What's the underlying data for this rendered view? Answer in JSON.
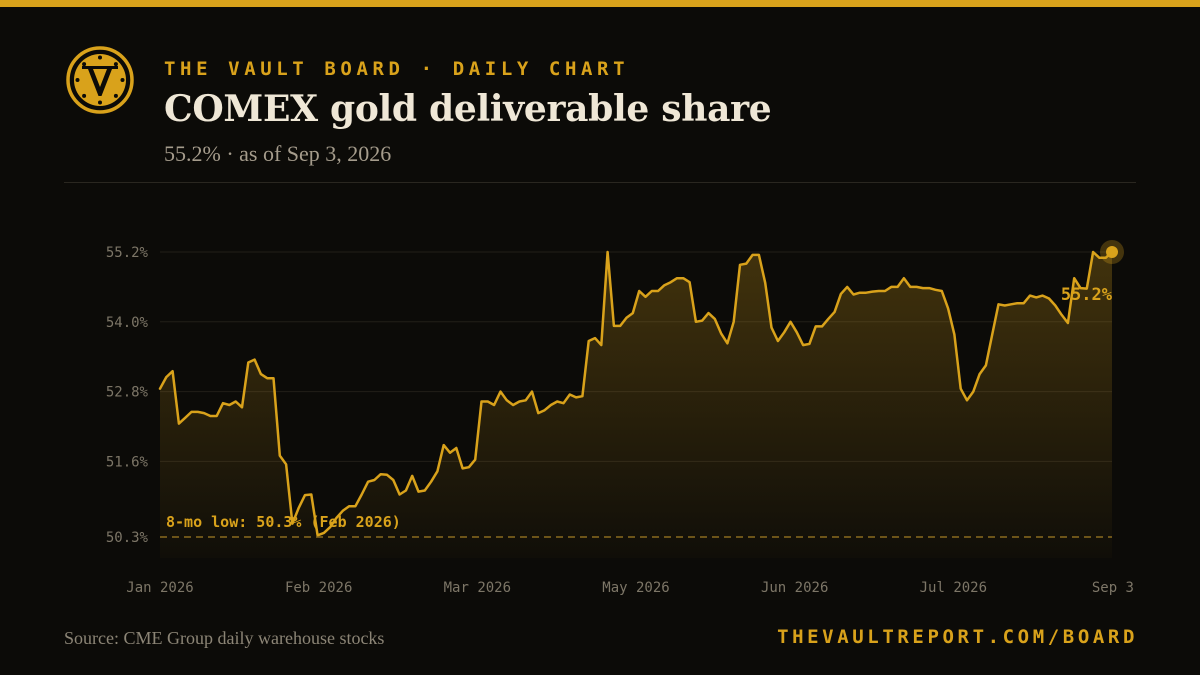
{
  "header": {
    "kicker": "THE VAULT BOARD · DAILY CHART",
    "title": "COMEX gold deliverable share",
    "subtitle": "55.2% · as of Sep 3, 2026",
    "logo_icon": "vault-v-dial-icon"
  },
  "footer": {
    "source": "Source: CME Group daily warehouse stocks",
    "url": "THEVAULTREPORT.COM/BOARD"
  },
  "colors": {
    "background": "#0c0b08",
    "accent": "#d9a21b",
    "title": "#efe7d6"
  },
  "chart_data": {
    "type": "area",
    "title": "COMEX gold deliverable share",
    "yticks": [
      "55.2%",
      "54.0%",
      "52.8%",
      "51.6%",
      "50.3%"
    ],
    "ytick_values": [
      55.2,
      54.0,
      52.8,
      51.6,
      50.3
    ],
    "ylim": [
      50.0,
      55.3
    ],
    "xticks": [
      "Jan 2026",
      "Feb 2026",
      "Mar 2026",
      "May 2026",
      "Jun 2026",
      "Jul 2026",
      "Sep 3"
    ],
    "grid": true,
    "series": [
      {
        "values": [
          52.85,
          53.05,
          53.15,
          52.25,
          52.35,
          52.45,
          52.45,
          52.43,
          52.38,
          52.38,
          52.6,
          52.57,
          52.63,
          52.53,
          53.3,
          53.35,
          53.1,
          53.03,
          53.03,
          51.7,
          51.55,
          50.53,
          50.8,
          51.02,
          51.03,
          50.33,
          50.37,
          50.47,
          50.63,
          50.75,
          50.83,
          50.83,
          51.03,
          51.25,
          51.28,
          51.38,
          51.37,
          51.28,
          51.03,
          51.1,
          51.35,
          51.08,
          51.1,
          51.25,
          51.43,
          51.88,
          51.75,
          51.83,
          51.48,
          51.5,
          51.63,
          52.63,
          52.63,
          52.57,
          52.8,
          52.65,
          52.57,
          52.63,
          52.65,
          52.8,
          52.43,
          52.48,
          52.57,
          52.63,
          52.6,
          52.75,
          52.7,
          52.72,
          53.67,
          53.72,
          53.6,
          55.2,
          53.93,
          53.93,
          54.07,
          54.15,
          54.53,
          54.43,
          54.53,
          54.53,
          54.63,
          54.68,
          54.75,
          54.75,
          54.68,
          54.0,
          54.02,
          54.15,
          54.05,
          53.8,
          53.63,
          54.0,
          54.98,
          55.0,
          55.15,
          55.15,
          54.67,
          53.9,
          53.67,
          53.82,
          54.0,
          53.82,
          53.6,
          53.62,
          53.92,
          53.92,
          54.05,
          54.17,
          54.48,
          54.6,
          54.47,
          54.5,
          54.5,
          54.52,
          54.53,
          54.53,
          54.6,
          54.6,
          54.75,
          54.6,
          54.6,
          54.58,
          54.58,
          54.55,
          54.53,
          54.23,
          53.78,
          52.85,
          52.65,
          52.8,
          53.1,
          53.25,
          53.78,
          54.3,
          54.28,
          54.3,
          54.32,
          54.32,
          54.45,
          54.42,
          54.45,
          54.4,
          54.28,
          54.12,
          53.98,
          54.75,
          54.58,
          54.57,
          55.2,
          55.1,
          55.1,
          55.2
        ],
        "end_label": "55.2%"
      }
    ],
    "annotations": [
      {
        "text": "8-mo low: 50.3% (Feb 2026)",
        "y": 50.3,
        "style": "dashed-line"
      }
    ]
  }
}
